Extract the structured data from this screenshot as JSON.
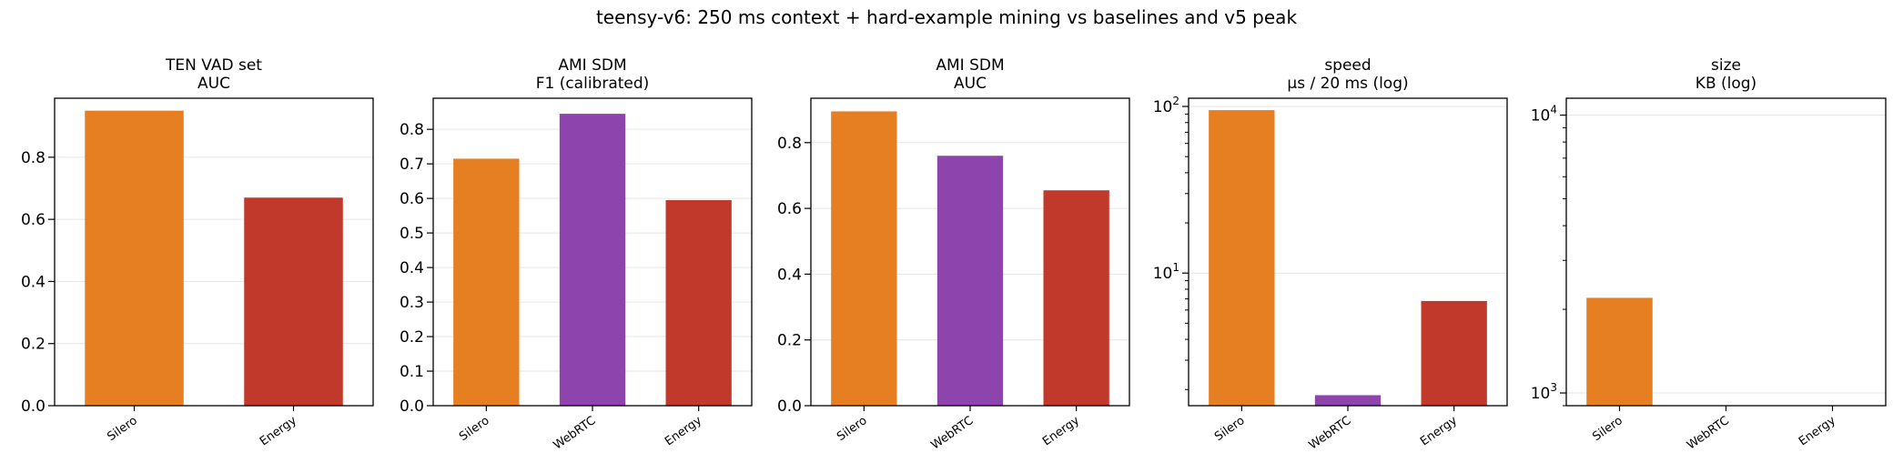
{
  "figure": {
    "title": "teensy-v6: 250 ms context + hard-example mining vs baselines and v5 peak"
  },
  "colors": {
    "Silero": "#e67e22",
    "WebRTC": "#8e44ad",
    "Energy": "#c0392b",
    "grid": "#e6e6e6",
    "axis": "#000000"
  },
  "chart_data": [
    {
      "type": "bar",
      "title": "TEN VAD set",
      "subtitle": "AUC",
      "categories": [
        "Silero",
        "Energy"
      ],
      "values": [
        0.95,
        0.67
      ],
      "ylim": [
        0,
        0.99
      ],
      "yscale": "linear",
      "yticks": [
        0.0,
        0.2,
        0.4,
        0.6,
        0.8
      ],
      "ytick_labels": [
        "0.0",
        "0.2",
        "0.4",
        "0.6",
        "0.8"
      ],
      "grid": true
    },
    {
      "type": "bar",
      "title": "AMI SDM",
      "subtitle": "F1 (calibrated)",
      "categories": [
        "Silero",
        "WebRTC",
        "Energy"
      ],
      "values": [
        0.715,
        0.845,
        0.595
      ],
      "ylim": [
        0,
        0.89
      ],
      "yscale": "linear",
      "yticks": [
        0.0,
        0.1,
        0.2,
        0.3,
        0.4,
        0.5,
        0.6,
        0.7,
        0.8
      ],
      "ytick_labels": [
        "0.0",
        "0.1",
        "0.2",
        "0.3",
        "0.4",
        "0.5",
        "0.6",
        "0.7",
        "0.8"
      ],
      "grid": true
    },
    {
      "type": "bar",
      "title": "AMI SDM",
      "subtitle": "AUC",
      "categories": [
        "Silero",
        "WebRTC",
        "Energy"
      ],
      "values": [
        0.895,
        0.76,
        0.655
      ],
      "ylim": [
        0,
        0.935
      ],
      "yscale": "linear",
      "yticks": [
        0.0,
        0.2,
        0.4,
        0.6,
        0.8
      ],
      "ytick_labels": [
        "0.0",
        "0.2",
        "0.4",
        "0.6",
        "0.8"
      ],
      "grid": true
    },
    {
      "type": "bar",
      "title": "speed",
      "subtitle": "µs / 20 ms (log)",
      "categories": [
        "Silero",
        "WebRTC",
        "Energy"
      ],
      "values": [
        95,
        1.85,
        6.8
      ],
      "ylim": [
        1.6,
        112
      ],
      "yscale": "log",
      "yticks": [
        10,
        100
      ],
      "ytick_base": [
        "10",
        "10"
      ],
      "ytick_exp": [
        "1",
        "2"
      ],
      "grid": true
    },
    {
      "type": "bar",
      "title": "size",
      "subtitle": "KB (log)",
      "categories": [
        "Silero",
        "WebRTC",
        "Energy"
      ],
      "values": [
        2200,
        null,
        null
      ],
      "ylim": [
        900,
        11500
      ],
      "yscale": "log",
      "yticks": [
        1000,
        10000
      ],
      "ytick_base": [
        "10",
        "10"
      ],
      "ytick_exp": [
        "3",
        "4"
      ],
      "grid": true
    }
  ]
}
